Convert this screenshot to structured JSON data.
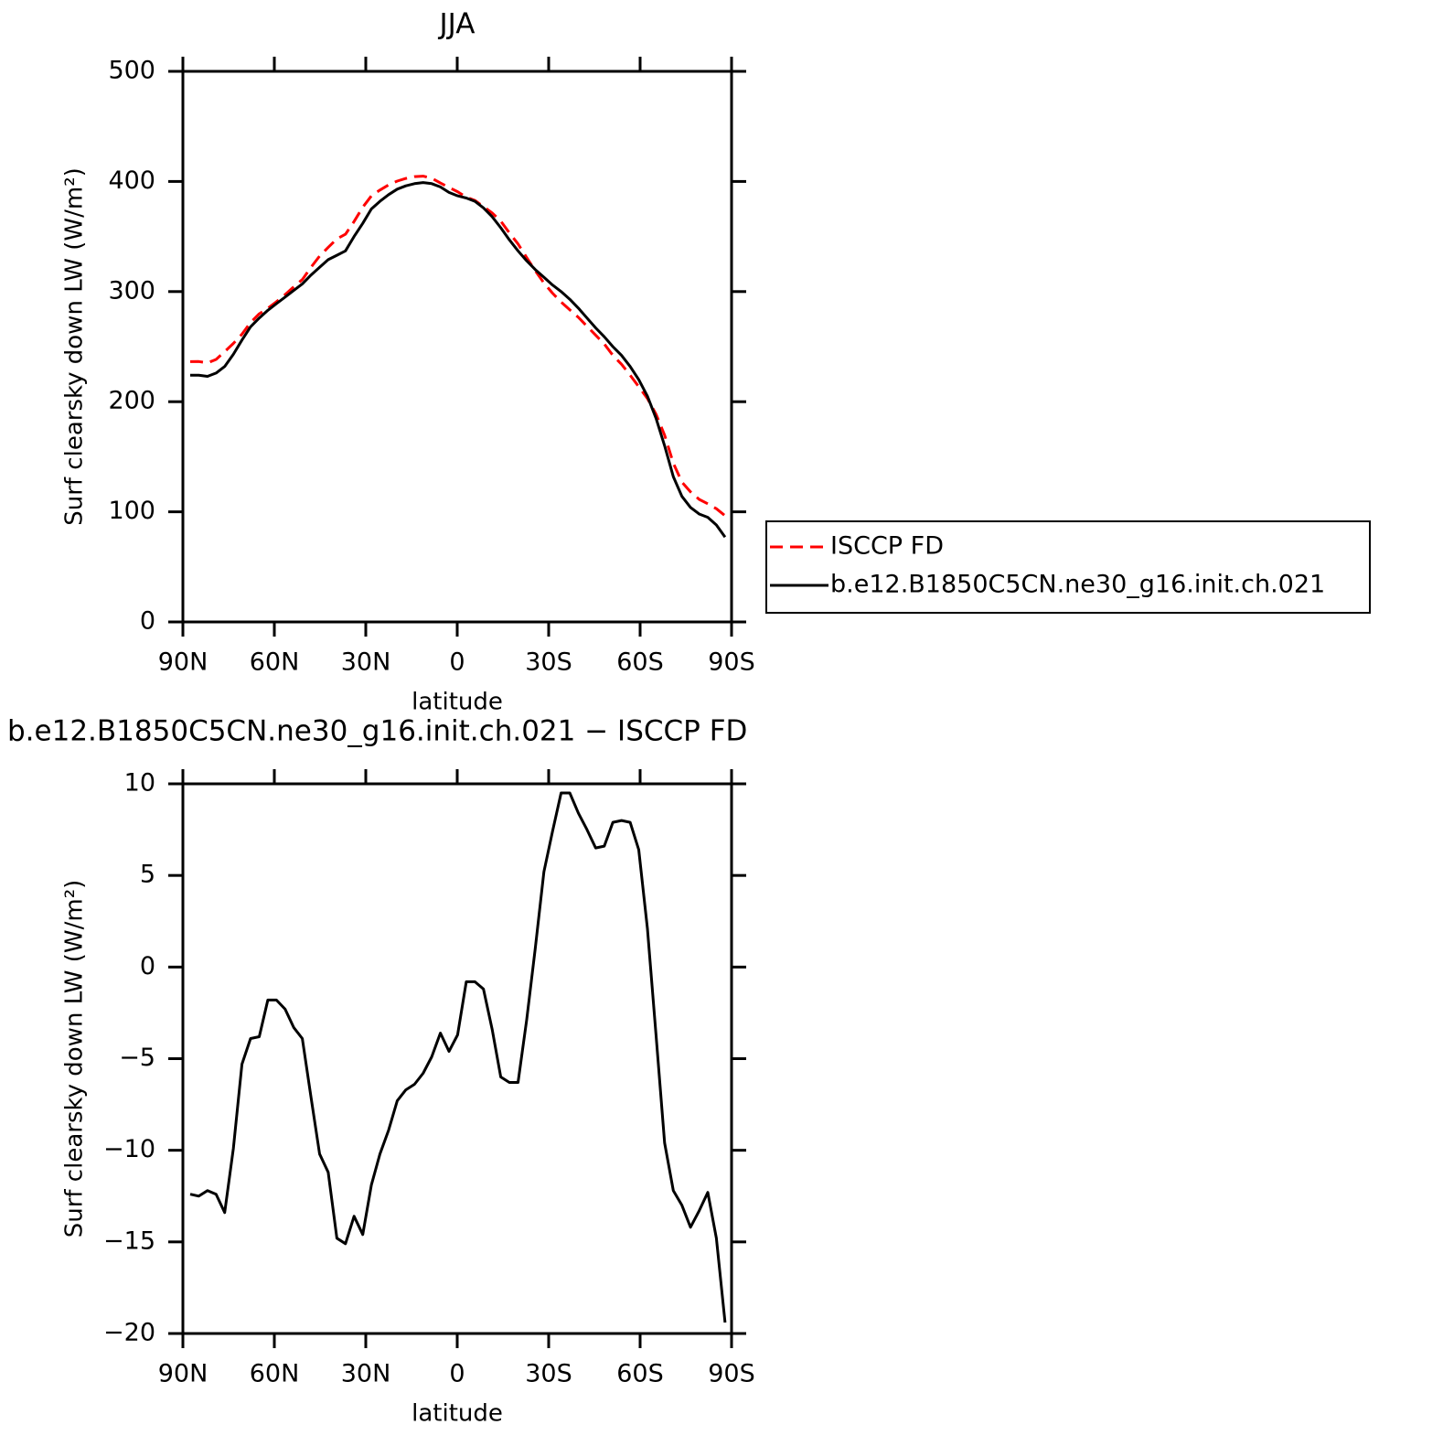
{
  "chart_data": [
    {
      "type": "line",
      "title": "JJA",
      "xlabel": "latitude",
      "ylabel": "Surf clearsky down LW (W/m²)",
      "legend": "right",
      "x": [
        87.6,
        84.77,
        81.94,
        79.11,
        76.28,
        73.45,
        70.62,
        67.79,
        64.96,
        62.13,
        59.3,
        56.47,
        53.64,
        50.81,
        47.98,
        45.15,
        42.32,
        39.49,
        36.66,
        33.83,
        31.0,
        28.17,
        25.34,
        22.51,
        19.68,
        16.85,
        14.02,
        11.19,
        8.36,
        5.53,
        2.7,
        -0.13,
        -2.96,
        -5.79,
        -8.62,
        -11.45,
        -14.28,
        -17.11,
        -19.94,
        -22.77,
        -25.6,
        -28.43,
        -31.26,
        -34.09,
        -36.92,
        -39.75,
        -42.58,
        -45.41,
        -48.24,
        -51.07,
        -53.9,
        -56.73,
        -59.56,
        -62.39,
        -65.22,
        -68.05,
        -70.88,
        -73.71,
        -76.54,
        -79.37,
        -82.2,
        -85.03,
        -87.86
      ],
      "series": [
        {
          "name": "ISCCP FD",
          "color": "#ff0000",
          "style": "dashed",
          "values": [
            236.4,
            236.5,
            235.2,
            238.4,
            245.4,
            252.9,
            261.3,
            271.9,
            279.8,
            284.8,
            290.8,
            297.3,
            304.3,
            310.9,
            322.1,
            332.2,
            340.2,
            347.8,
            352.1,
            363.6,
            376.6,
            386.9,
            392.2,
            396.9,
            400.3,
            402.7,
            404.4,
            404.8,
            402.9,
            398.6,
            394.6,
            390.7,
            385.8,
            382.8,
            377.2,
            371.4,
            364,
            353.3,
            343.3,
            330.9,
            319,
            307.8,
            298.6,
            290.5,
            283.5,
            276.6,
            268.5,
            260.5,
            252.4,
            242.1,
            234,
            224.1,
            213.6,
            202.9,
            188.7,
            169.6,
            144.2,
            127,
            118.2,
            111.3,
            107.3,
            102.8,
            96.4
          ]
        },
        {
          "name": "b.e12.B1850C5CN.ne30_g16.init.ch.021",
          "color": "#000000",
          "style": "solid",
          "values": [
            224,
            224,
            223,
            226,
            232,
            243,
            256,
            268,
            276,
            283,
            289,
            295,
            301,
            307,
            315,
            322,
            329,
            333,
            337,
            350,
            362,
            375,
            382,
            388,
            393,
            396,
            398,
            399,
            398,
            395,
            390,
            387,
            385,
            382,
            376,
            368,
            358,
            347,
            337,
            328,
            320,
            313,
            306,
            300,
            293,
            285,
            276,
            267,
            259,
            250,
            242,
            232,
            220,
            205,
            185,
            160,
            132,
            114,
            104,
            98,
            95,
            88,
            77
          ]
        }
      ],
      "xlim": [
        90,
        -90
      ],
      "xticks": [
        {
          "value": 90,
          "label": "90N"
        },
        {
          "value": 60,
          "label": "60N"
        },
        {
          "value": 30,
          "label": "30N"
        },
        0,
        {
          "value": -30,
          "label": "30S"
        },
        {
          "value": -60,
          "label": "60S"
        },
        {
          "value": -90,
          "label": "90S"
        }
      ],
      "ylim": [
        0,
        500
      ],
      "yticks": [
        0,
        100,
        200,
        300,
        400,
        500
      ]
    },
    {
      "type": "line",
      "title": "b.e12.B1850C5CN.ne30_g16.init.ch.021 − ISCCP FD",
      "xlabel": "latitude",
      "ylabel": "Surf clearsky down LW (W/m²)",
      "x": [
        87.6,
        84.77,
        81.94,
        79.11,
        76.28,
        73.45,
        70.62,
        67.79,
        64.96,
        62.13,
        59.3,
        56.47,
        53.64,
        50.81,
        47.98,
        45.15,
        42.32,
        39.49,
        36.66,
        33.83,
        31.0,
        28.17,
        25.34,
        22.51,
        19.68,
        16.85,
        14.02,
        11.19,
        8.36,
        5.53,
        2.7,
        -0.13,
        -2.96,
        -5.79,
        -8.62,
        -11.45,
        -14.28,
        -17.11,
        -19.94,
        -22.77,
        -25.6,
        -28.43,
        -31.26,
        -34.09,
        -36.92,
        -39.75,
        -42.58,
        -45.41,
        -48.24,
        -51.07,
        -53.9,
        -56.73,
        -59.56,
        -62.39,
        -65.22,
        -68.05,
        -70.88,
        -73.71,
        -76.54,
        -79.37,
        -82.2,
        -85.03,
        -87.86
      ],
      "color": "#000000",
      "values": [
        -12.4,
        -12.5,
        -12.2,
        -12.4,
        -13.4,
        -9.9,
        -5.3,
        -3.9,
        -3.8,
        -1.8,
        -1.8,
        -2.3,
        -3.3,
        -3.9,
        -7.1,
        -10.2,
        -11.2,
        -14.8,
        -15.1,
        -13.6,
        -14.6,
        -11.9,
        -10.2,
        -8.9,
        -7.3,
        -6.7,
        -6.4,
        -5.8,
        -4.9,
        -3.6,
        -4.6,
        -3.7,
        -0.8,
        -0.8,
        -1.2,
        -3.4,
        -6.0,
        -6.3,
        -6.3,
        -2.9,
        1.0,
        5.2,
        7.4,
        9.5,
        9.5,
        8.4,
        7.5,
        6.5,
        6.6,
        7.9,
        8.0,
        7.9,
        6.4,
        2.1,
        -3.7,
        -9.6,
        -12.2,
        -13.0,
        -14.2,
        -13.3,
        -12.3,
        -14.8,
        -19.4
      ],
      "xlim": [
        90,
        -90
      ],
      "xticks": [
        {
          "value": 90,
          "label": "90N"
        },
        {
          "value": 60,
          "label": "60N"
        },
        {
          "value": 30,
          "label": "30N"
        },
        0,
        {
          "value": -30,
          "label": "30S"
        },
        {
          "value": -60,
          "label": "60S"
        },
        {
          "value": -90,
          "label": "90S"
        }
      ],
      "ylim": [
        -20,
        10
      ],
      "yticks": [
        {
          "value": -20,
          "label": "−20"
        },
        {
          "value": -15,
          "label": "−15"
        },
        {
          "value": -10,
          "label": "−10"
        },
        {
          "value": -5,
          "label": "−5"
        },
        0,
        5,
        10
      ]
    }
  ]
}
